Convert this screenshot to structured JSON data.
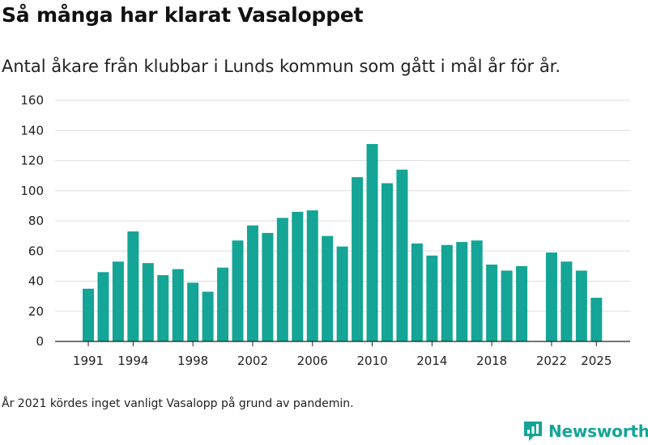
{
  "header": {
    "title": "Så många har klarat Vasaloppet",
    "subtitle": "Antal åkare från klubbar i Lunds kommun som gått i mål år för år."
  },
  "footnote": "År 2021 kördes inget vanligt Vasalopp på grund av pandemin.",
  "brand": {
    "name": "Newsworthy",
    "icon": "newsworthy-logo-icon",
    "color": "#14a596"
  },
  "chart_data": {
    "type": "bar",
    "title": "Så många har klarat Vasaloppet",
    "subtitle": "Antal åkare från klubbar i Lunds kommun som gått i mål år för år.",
    "xlabel": "",
    "ylabel": "",
    "ylim": [
      0,
      160
    ],
    "yticks": [
      0,
      20,
      40,
      60,
      80,
      100,
      120,
      140,
      160
    ],
    "xticks": [
      1991,
      1994,
      1998,
      2002,
      2006,
      2010,
      2014,
      2018,
      2022,
      2025
    ],
    "grid": "horizontal",
    "bar_color": "#14a596",
    "categories": [
      1991,
      1992,
      1993,
      1994,
      1995,
      1996,
      1997,
      1998,
      1999,
      2000,
      2001,
      2002,
      2003,
      2004,
      2005,
      2006,
      2007,
      2008,
      2009,
      2010,
      2011,
      2012,
      2013,
      2014,
      2015,
      2016,
      2017,
      2018,
      2019,
      2020,
      2021,
      2022,
      2023,
      2024,
      2025
    ],
    "values": [
      35,
      46,
      53,
      73,
      52,
      44,
      48,
      39,
      33,
      49,
      67,
      77,
      72,
      82,
      86,
      87,
      70,
      63,
      109,
      131,
      105,
      114,
      65,
      57,
      64,
      66,
      67,
      51,
      47,
      50,
      null,
      59,
      53,
      47,
      29
    ]
  }
}
